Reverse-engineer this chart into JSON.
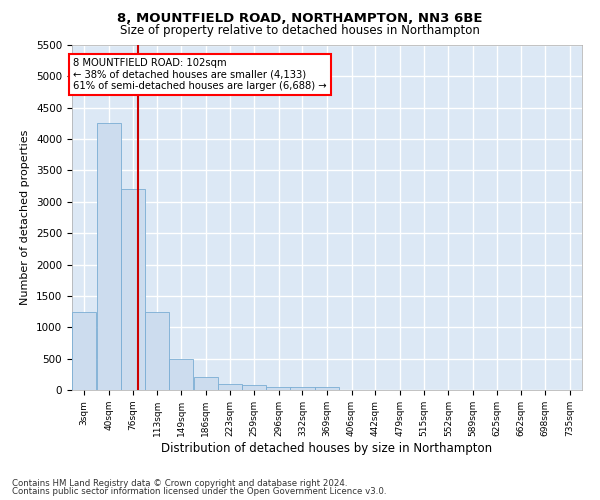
{
  "title": "8, MOUNTFIELD ROAD, NORTHAMPTON, NN3 6BE",
  "subtitle": "Size of property relative to detached houses in Northampton",
  "xlabel": "Distribution of detached houses by size in Northampton",
  "ylabel": "Number of detached properties",
  "bar_color": "#ccdcee",
  "bar_edge_color": "#7aadd4",
  "background_color": "#dce8f5",
  "grid_color": "white",
  "vline_x": 102,
  "vline_color": "#cc0000",
  "annotation_title": "8 MOUNTFIELD ROAD: 102sqm",
  "annotation_line1": "← 38% of detached houses are smaller (4,133)",
  "annotation_line2": "61% of semi-detached houses are larger (6,688) →",
  "bin_edges": [
    3,
    40,
    76,
    113,
    149,
    186,
    223,
    259,
    296,
    332,
    369,
    406,
    442,
    479,
    515,
    552,
    589,
    625,
    662,
    698,
    735
  ],
  "bar_heights": [
    1250,
    4250,
    3200,
    1250,
    500,
    200,
    100,
    75,
    50,
    50,
    50,
    0,
    0,
    0,
    0,
    0,
    0,
    0,
    0,
    0
  ],
  "ylim": [
    0,
    5500
  ],
  "yticks": [
    0,
    500,
    1000,
    1500,
    2000,
    2500,
    3000,
    3500,
    4000,
    4500,
    5000,
    5500
  ],
  "footnote1": "Contains HM Land Registry data © Crown copyright and database right 2024.",
  "footnote2": "Contains public sector information licensed under the Open Government Licence v3.0."
}
